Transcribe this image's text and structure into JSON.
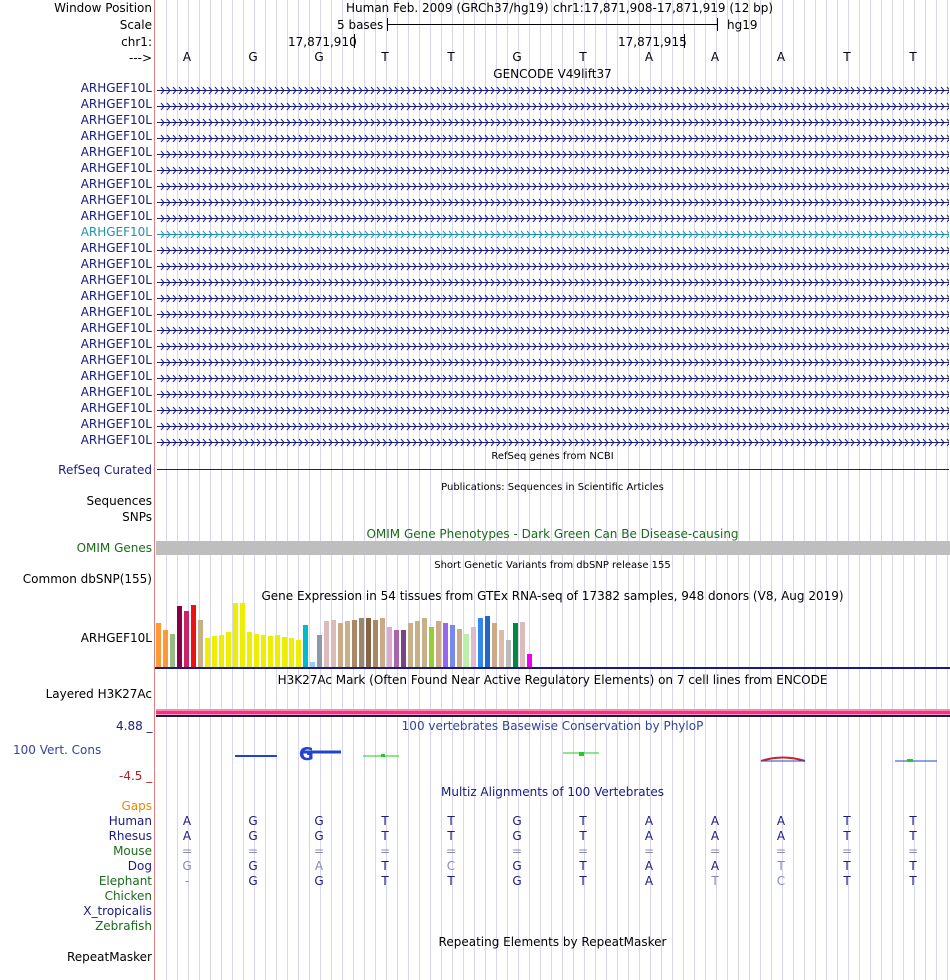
{
  "header": {
    "window_position_label": "Window Position",
    "scale_label": "Scale",
    "chrom_label": "chr1:",
    "strand_label": "--->",
    "assembly": "Human Feb. 2009 (GRCh37/hg19)",
    "position": "chr1:17,871,908-17,871,919 (12 bp)",
    "scale_text": "5 bases",
    "scale_db": "hg19",
    "coord1": "17,871,910",
    "coord2": "17,871,915",
    "bases": [
      "A",
      "G",
      "G",
      "T",
      "T",
      "G",
      "T",
      "A",
      "A",
      "A",
      "T",
      "T"
    ]
  },
  "gencode": {
    "title": "GENCODE V49lift37",
    "gene_labels": [
      "ARHGEF10L",
      "ARHGEF10L",
      "ARHGEF10L",
      "ARHGEF10L",
      "ARHGEF10L",
      "ARHGEF10L",
      "ARHGEF10L",
      "ARHGEF10L",
      "ARHGEF10L",
      "ARHGEF10L",
      "ARHGEF10L",
      "ARHGEF10L",
      "ARHGEF10L",
      "ARHGEF10L",
      "ARHGEF10L",
      "ARHGEF10L",
      "ARHGEF10L",
      "ARHGEF10L",
      "ARHGEF10L",
      "ARHGEF10L",
      "ARHGEF10L",
      "ARHGEF10L",
      "ARHGEF10L"
    ],
    "highlighted_row": 9,
    "color": "#1a1a80",
    "highlight_color": "#2090b0"
  },
  "refseq": {
    "title": "RefSeq genes from NCBI",
    "label": "RefSeq Curated"
  },
  "publications": {
    "title": "Publications: Sequences in Scientific Articles",
    "labels": [
      "Sequences",
      "SNPs"
    ]
  },
  "omim": {
    "title": "OMIM Gene Phenotypes - Dark Green Can Be Disease-causing",
    "label": "OMIM Genes",
    "bar_color": "#bebebe"
  },
  "dbsnp": {
    "title": "Short Genetic Variants from dbSNP release 155",
    "label": "Common dbSNP(155)"
  },
  "gtex": {
    "title": "Gene Expression in 54 tissues from GTEx RNA-seq of 17382 samples, 948 donors (V8, Aug 2019)",
    "label": "ARHGEF10L",
    "bars": [
      {
        "v": 0.68,
        "c": "#ff9933"
      },
      {
        "v": 0.58,
        "c": "#ff9933"
      },
      {
        "v": 0.52,
        "c": "#99bb88"
      },
      {
        "v": 0.95,
        "c": "#880044"
      },
      {
        "v": 0.88,
        "c": "#cc2266"
      },
      {
        "v": 0.97,
        "c": "#ee1111"
      },
      {
        "v": 0.74,
        "c": "#c8b088"
      },
      {
        "v": 0.45,
        "c": "#eeee00"
      },
      {
        "v": 0.48,
        "c": "#eeee00"
      },
      {
        "v": 0.5,
        "c": "#eeee00"
      },
      {
        "v": 0.55,
        "c": "#eeee00"
      },
      {
        "v": 1.0,
        "c": "#eeee00"
      },
      {
        "v": 1.0,
        "c": "#eeee00"
      },
      {
        "v": 0.55,
        "c": "#eeee00"
      },
      {
        "v": 0.52,
        "c": "#eeee00"
      },
      {
        "v": 0.5,
        "c": "#eeee00"
      },
      {
        "v": 0.48,
        "c": "#eeee00"
      },
      {
        "v": 0.5,
        "c": "#eeee00"
      },
      {
        "v": 0.47,
        "c": "#eeee00"
      },
      {
        "v": 0.45,
        "c": "#eeee00"
      },
      {
        "v": 0.42,
        "c": "#eeee00"
      },
      {
        "v": 0.65,
        "c": "#00bbcc"
      },
      {
        "v": 0.08,
        "c": "#99ccee"
      },
      {
        "v": 0.5,
        "c": "#8899aa"
      },
      {
        "v": 0.72,
        "c": "#ddbbbb"
      },
      {
        "v": 0.74,
        "c": "#ddbbbb"
      },
      {
        "v": 0.68,
        "c": "#ccaa88"
      },
      {
        "v": 0.72,
        "c": "#c8b088"
      },
      {
        "v": 0.74,
        "c": "#aa8866"
      },
      {
        "v": 0.76,
        "c": "#998866"
      },
      {
        "v": 0.76,
        "c": "#886644"
      },
      {
        "v": 0.74,
        "c": "#aa8866"
      },
      {
        "v": 0.76,
        "c": "#ccaa88"
      },
      {
        "v": 0.62,
        "c": "#ddaacc"
      },
      {
        "v": 0.58,
        "c": "#aa66aa"
      },
      {
        "v": 0.58,
        "c": "#774488"
      },
      {
        "v": 0.68,
        "c": "#c8b088"
      },
      {
        "v": 0.72,
        "c": "#c8b088"
      },
      {
        "v": 0.76,
        "c": "#c8b088"
      },
      {
        "v": 0.62,
        "c": "#99cc33"
      },
      {
        "v": 0.72,
        "c": "#ccaa88"
      },
      {
        "v": 0.68,
        "c": "#9966ee"
      },
      {
        "v": 0.66,
        "c": "#7788ee"
      },
      {
        "v": 0.6,
        "c": "#ccaa88"
      },
      {
        "v": 0.52,
        "c": "#bbeeaa"
      },
      {
        "v": 0.62,
        "c": "#ddbbcc"
      },
      {
        "v": 0.76,
        "c": "#3388ee"
      },
      {
        "v": 0.8,
        "c": "#2266cc"
      },
      {
        "v": 0.68,
        "c": "#ccaa88"
      },
      {
        "v": 0.58,
        "c": "#ddbbaa"
      },
      {
        "v": 0.42,
        "c": "#bbbbbb"
      },
      {
        "v": 0.68,
        "c": "#008844"
      },
      {
        "v": 0.7,
        "c": "#ddbbbb"
      },
      {
        "v": 0.2,
        "c": "#ee00ee"
      }
    ]
  },
  "h3k27ac": {
    "title": "H3K27Ac Mark (Often Found Near Active Regulatory Elements) on 7 cell lines from ENCODE",
    "label": "Layered H3K27Ac"
  },
  "phylop": {
    "title": "100 vertebrates Basewise Conservation by PhyloP",
    "label": "100 Vert. Cons",
    "max_label": "4.88 _",
    "min_label": "-4.5 _"
  },
  "multiz": {
    "title": "Multiz Alignments of 100 Vertebrates",
    "gaps_label": "Gaps",
    "species": [
      {
        "name": "Human",
        "color": "#1a1a80",
        "bases": [
          "A",
          "G",
          "G",
          "T",
          "T",
          "G",
          "T",
          "A",
          "A",
          "A",
          "T",
          "T"
        ],
        "dim": [
          0,
          0,
          0,
          0,
          0,
          0,
          0,
          0,
          0,
          0,
          0,
          0
        ]
      },
      {
        "name": "Rhesus",
        "color": "#1a1a80",
        "bases": [
          "A",
          "G",
          "G",
          "T",
          "T",
          "G",
          "T",
          "A",
          "A",
          "A",
          "T",
          "T"
        ],
        "dim": [
          0,
          0,
          0,
          0,
          0,
          0,
          0,
          0,
          0,
          0,
          0,
          0
        ]
      },
      {
        "name": "Mouse",
        "color": "#1a6b1a",
        "bases": [
          "=",
          "=",
          "=",
          "=",
          "=",
          "=",
          "=",
          "=",
          "=",
          "=",
          "=",
          "="
        ],
        "dim": [
          1,
          1,
          1,
          1,
          1,
          1,
          1,
          1,
          1,
          1,
          1,
          1
        ]
      },
      {
        "name": "Dog",
        "color": "#1a1a80",
        "bases": [
          "G",
          "G",
          "A",
          "T",
          "C",
          "G",
          "T",
          "A",
          "A",
          "T",
          "T",
          "T"
        ],
        "dim": [
          1,
          0,
          1,
          0,
          1,
          0,
          0,
          0,
          0,
          1,
          0,
          0
        ]
      },
      {
        "name": "Elephant",
        "color": "#1a6b1a",
        "bases": [
          "-",
          "G",
          "G",
          "T",
          "T",
          "G",
          "T",
          "A",
          "T",
          "C",
          "T",
          "T"
        ],
        "dim": [
          1,
          0,
          0,
          0,
          0,
          0,
          0,
          0,
          1,
          1,
          0,
          0
        ]
      },
      {
        "name": "Chicken",
        "color": "#1a6b1a",
        "bases": [],
        "dim": []
      },
      {
        "name": "X_tropicalis",
        "color": "#1a1a80",
        "bases": [],
        "dim": []
      },
      {
        "name": "Zebrafish",
        "color": "#1a6b1a",
        "bases": [],
        "dim": []
      }
    ]
  },
  "repeatmasker": {
    "title": "Repeating Elements by RepeatMasker",
    "label": "RepeatMasker"
  }
}
